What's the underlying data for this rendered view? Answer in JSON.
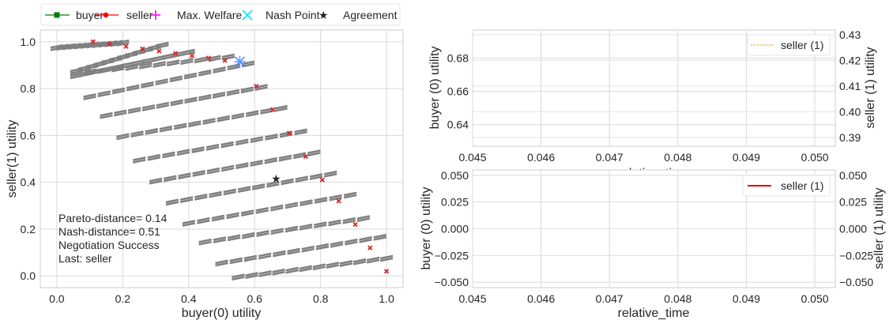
{
  "chart_data": [
    {
      "type": "scatter",
      "xlabel": "buyer(0) utility",
      "ylabel": "seller(1) utility",
      "xlim": [
        -0.05,
        1.05
      ],
      "ylim": [
        -0.05,
        1.05
      ],
      "xticks": [
        "0.0",
        "0.2",
        "0.4",
        "0.6",
        "0.8",
        "1.0"
      ],
      "yticks": [
        "0.0",
        "0.2",
        "0.4",
        "0.6",
        "0.8",
        "1.0"
      ],
      "grid": true,
      "legend": {
        "placement": "top-left, above plot",
        "entries": [
          {
            "label": "buyer",
            "marker": "square",
            "color": "#008000"
          },
          {
            "label": "seller",
            "marker": "circle",
            "color": "#ff0000"
          },
          {
            "label": "Max. Welfare",
            "marker": "plus",
            "color": "#ff00ff"
          },
          {
            "label": "Nash Point",
            "marker": "x",
            "color": "#00e5ff"
          },
          {
            "label": "Agreement",
            "marker": "star",
            "color": "#000000"
          }
        ]
      },
      "outcomes": {
        "color": "#808080",
        "rows": [
          {
            "x_start": 0.0,
            "x_end": 0.2,
            "y_start": 0.98,
            "y_end": 1.0
          },
          {
            "x_start": 0.06,
            "x_end": 0.32,
            "y_start": 0.88,
            "y_end": 0.99
          },
          {
            "x_start": 0.06,
            "x_end": 0.4,
            "y_start": 0.86,
            "y_end": 0.96
          },
          {
            "x_start": 0.06,
            "x_end": 0.52,
            "y_start": 0.87,
            "y_end": 0.94
          },
          {
            "x_start": 0.1,
            "x_end": 0.58,
            "y_start": 0.77,
            "y_end": 0.91
          },
          {
            "x_start": 0.15,
            "x_end": 0.62,
            "y_start": 0.69,
            "y_end": 0.81
          },
          {
            "x_start": 0.2,
            "x_end": 0.68,
            "y_start": 0.6,
            "y_end": 0.72
          },
          {
            "x_start": 0.25,
            "x_end": 0.74,
            "y_start": 0.5,
            "y_end": 0.62
          },
          {
            "x_start": 0.3,
            "x_end": 0.78,
            "y_start": 0.41,
            "y_end": 0.53
          },
          {
            "x_start": 0.35,
            "x_end": 0.83,
            "y_start": 0.32,
            "y_end": 0.44
          },
          {
            "x_start": 0.4,
            "x_end": 0.89,
            "y_start": 0.23,
            "y_end": 0.35
          },
          {
            "x_start": 0.45,
            "x_end": 0.93,
            "y_start": 0.15,
            "y_end": 0.25
          },
          {
            "x_start": 0.5,
            "x_end": 0.98,
            "y_start": 0.06,
            "y_end": 0.17
          },
          {
            "x_start": 0.55,
            "x_end": 1.0,
            "y_start": 0.0,
            "y_end": 0.08
          }
        ]
      },
      "pareto_frontier": {
        "color": "#d62728",
        "points": [
          [
            0.11,
            1.0
          ],
          [
            0.16,
            0.99
          ],
          [
            0.21,
            0.98
          ],
          [
            0.26,
            0.97
          ],
          [
            0.31,
            0.96
          ],
          [
            0.36,
            0.95
          ],
          [
            0.41,
            0.94
          ],
          [
            0.46,
            0.93
          ],
          [
            0.51,
            0.92
          ],
          [
            0.605,
            0.81
          ],
          [
            0.655,
            0.71
          ],
          [
            0.705,
            0.61
          ],
          [
            0.755,
            0.51
          ],
          [
            0.805,
            0.41
          ],
          [
            0.855,
            0.32
          ],
          [
            0.905,
            0.22
          ],
          [
            0.95,
            0.12
          ],
          [
            1.0,
            0.02
          ]
        ]
      },
      "max_welfare": {
        "x": 0.555,
        "y": 0.915
      },
      "nash_point": {
        "x": 0.555,
        "y": 0.915
      },
      "agreement": {
        "x": 0.665,
        "y": 0.415
      },
      "annotations": [
        "Pareto-distance= 0.14",
        "Nash-distance= 0.51",
        "Negotiation Success",
        "Last: seller"
      ]
    },
    {
      "type": "line",
      "xlabel": "relative_time",
      "ylabel": "buyer (0) utility",
      "y2label": "seller (1) utility",
      "xlim": [
        0.045,
        0.0503
      ],
      "xticks": [
        "0.045",
        "0.046",
        "0.047",
        "0.048",
        "0.049",
        "0.050"
      ],
      "ylim": [
        0.627,
        0.697
      ],
      "yticks": [
        "0.64",
        "0.66",
        "0.68"
      ],
      "y2lim": [
        0.3866,
        0.4318
      ],
      "y2ticks": [
        "0.39",
        "0.40",
        "0.41",
        "0.42",
        "0.43"
      ],
      "grid": true,
      "legend": {
        "placement": "top-right",
        "entries": [
          {
            "label": "seller (1)",
            "color": "#d4a017",
            "style": "dotted"
          }
        ]
      },
      "series": []
    },
    {
      "type": "line",
      "xlabel": "relative_time",
      "ylabel": "buyer (0) utility",
      "y2label": "seller (1) utility",
      "xlim": [
        0.045,
        0.0503
      ],
      "xticks": [
        "0.045",
        "0.046",
        "0.047",
        "0.048",
        "0.049",
        "0.050"
      ],
      "ylim": [
        -0.055,
        0.055
      ],
      "yticks": [
        "−0.050",
        "−0.025",
        "0.000",
        "0.025",
        "0.050"
      ],
      "y2lim": [
        -0.055,
        0.055
      ],
      "y2ticks": [
        "−0.050",
        "−0.025",
        "0.000",
        "0.025",
        "0.050"
      ],
      "grid": true,
      "legend": {
        "placement": "top-right",
        "entries": [
          {
            "label": "seller (1)",
            "color": "#e00000",
            "style": "solid"
          }
        ]
      },
      "series": []
    }
  ]
}
